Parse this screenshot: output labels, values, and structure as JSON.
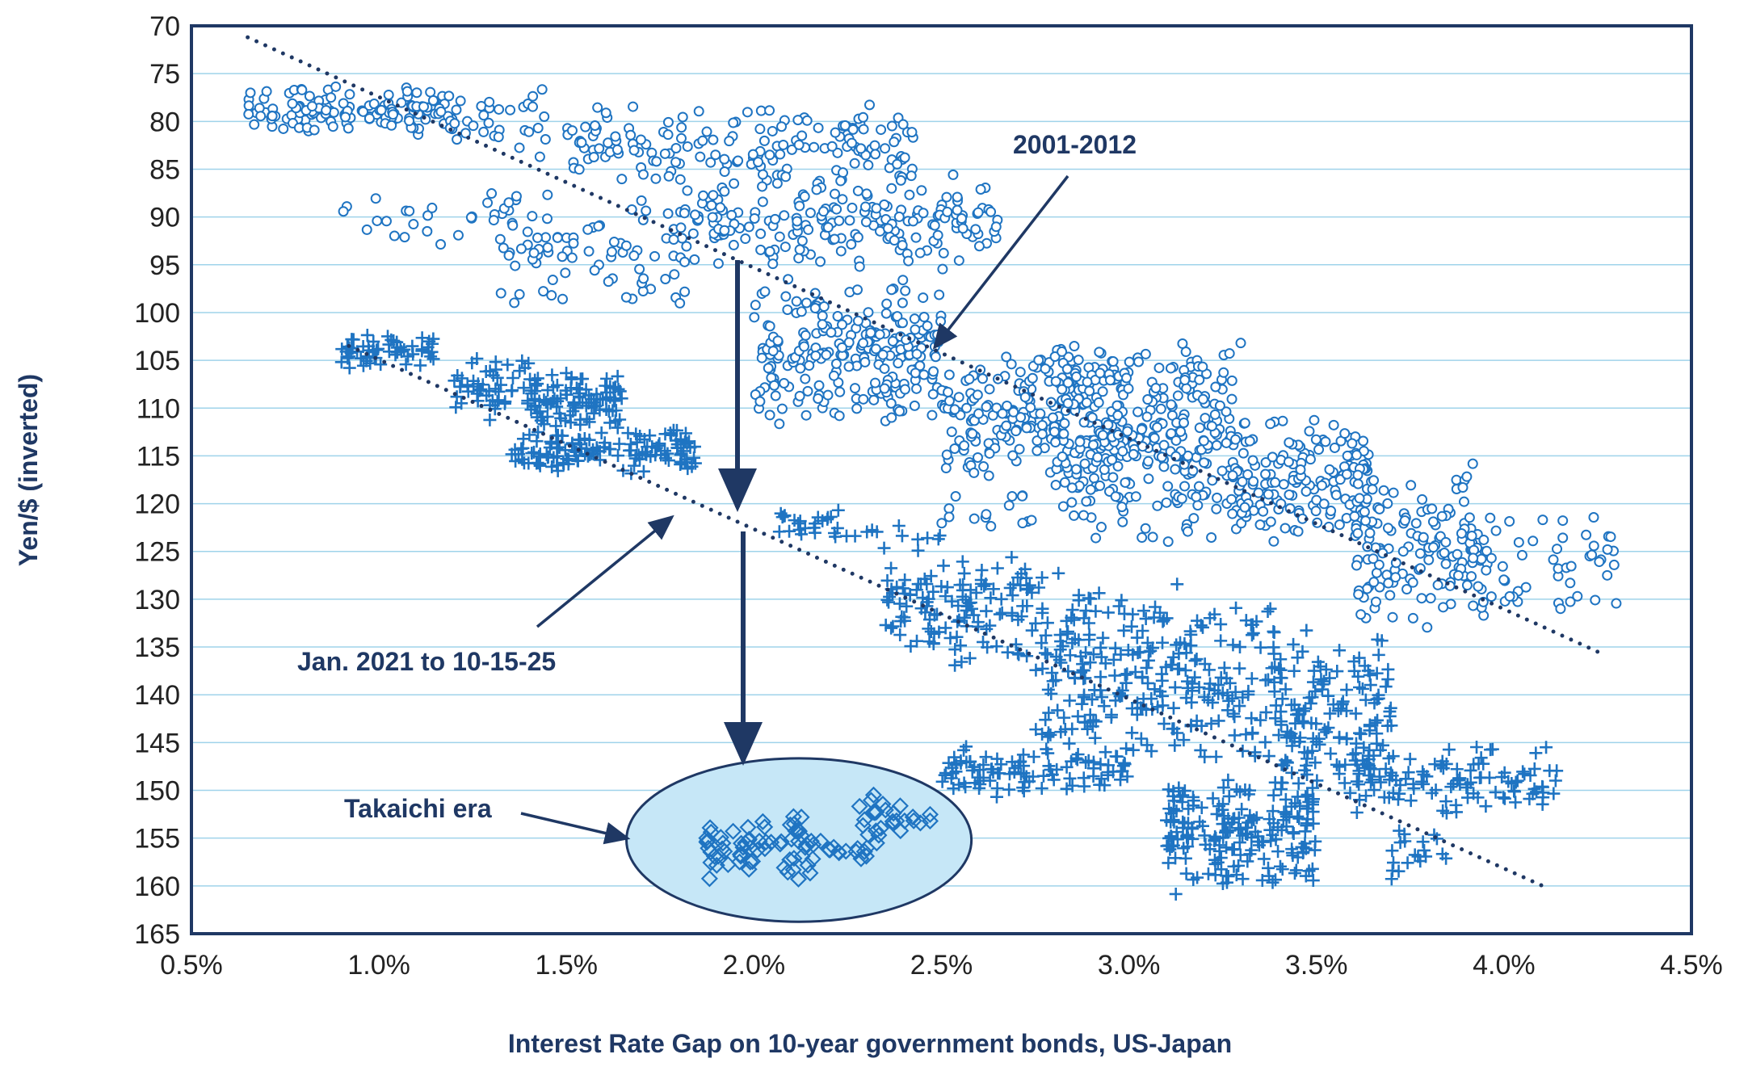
{
  "chart_data": {
    "type": "scatter",
    "xlabel": "Interest Rate Gap on 10-year government bonds, US-Japan",
    "ylabel": "Yen/$ (inverted)",
    "xlim": [
      0.5,
      4.5
    ],
    "ylim": [
      70,
      165
    ],
    "y_inverted": true,
    "grid": "horizontal",
    "x_ticks": [
      "0.5%",
      "1.0%",
      "1.5%",
      "2.0%",
      "2.5%",
      "3.0%",
      "3.5%",
      "4.0%",
      "4.5%"
    ],
    "y_ticks": [
      "70",
      "75",
      "80",
      "85",
      "90",
      "95",
      "100",
      "105",
      "110",
      "115",
      "120",
      "125",
      "130",
      "135",
      "140",
      "145",
      "150",
      "155",
      "160",
      "165"
    ],
    "colors": {
      "marker": "#1f74c2",
      "trend": "#1f3864",
      "ellipse_fill": "#c6e7f7",
      "frame": "#1f3864"
    },
    "series": [
      {
        "name": "2001-2012",
        "marker": "circle",
        "clusters": [
          {
            "x": [
              0.65,
              1.2
            ],
            "y": [
              76,
              82
            ],
            "n": 140
          },
          {
            "x": [
              1.2,
              1.45
            ],
            "y": [
              76,
              84
            ],
            "n": 30
          },
          {
            "x": [
              0.9,
              1.45
            ],
            "y": [
              87,
              93
            ],
            "n": 30
          },
          {
            "x": [
              1.3,
              1.85
            ],
            "y": [
              87,
              101
            ],
            "n": 80
          },
          {
            "x": [
              1.5,
              2.45
            ],
            "y": [
              78,
              87
            ],
            "n": 160
          },
          {
            "x": [
              1.8,
              2.65
            ],
            "y": [
              85,
              96
            ],
            "n": 200
          },
          {
            "x": [
              2.0,
              2.5
            ],
            "y": [
              96,
              112
            ],
            "n": 240
          },
          {
            "x": [
              2.5,
              3.0
            ],
            "y": [
              103,
              118
            ],
            "n": 220
          },
          {
            "x": [
              2.5,
              2.75
            ],
            "y": [
              118,
              124
            ],
            "n": 15
          },
          {
            "x": [
              2.8,
              3.3
            ],
            "y": [
              102,
              125
            ],
            "n": 320
          },
          {
            "x": [
              3.3,
              3.65
            ],
            "y": [
              110,
              125
            ],
            "n": 150
          },
          {
            "x": [
              3.6,
              3.95
            ],
            "y": [
              115,
              134
            ],
            "n": 140
          },
          {
            "x": [
              3.9,
              4.3
            ],
            "y": [
              119,
              133
            ],
            "n": 60
          }
        ]
      },
      {
        "name": "Jan. 2021 to 10-15-25",
        "marker": "plus",
        "clusters": [
          {
            "x": [
              0.9,
              1.15
            ],
            "y": [
              102,
              106
            ],
            "n": 60
          },
          {
            "x": [
              1.2,
              1.4
            ],
            "y": [
              104,
              112
            ],
            "n": 50
          },
          {
            "x": [
              1.4,
              1.65
            ],
            "y": [
              106,
              112
            ],
            "n": 100
          },
          {
            "x": [
              1.35,
              1.85
            ],
            "y": [
              112,
              117
            ],
            "n": 140
          },
          {
            "x": [
              2.05,
              2.25
            ],
            "y": [
              120,
              124
            ],
            "n": 25
          },
          {
            "x": [
              2.25,
              2.5
            ],
            "y": [
              122,
              126
            ],
            "n": 12
          },
          {
            "x": [
              2.35,
              2.9
            ],
            "y": [
              125,
              138
            ],
            "n": 150
          },
          {
            "x": [
              2.5,
              3.0
            ],
            "y": [
              145,
              151
            ],
            "n": 100
          },
          {
            "x": [
              2.75,
              3.4
            ],
            "y": [
              128,
              148
            ],
            "n": 260
          },
          {
            "x": [
              3.1,
              3.5
            ],
            "y": [
              148,
              161
            ],
            "n": 200
          },
          {
            "x": [
              3.4,
              3.7
            ],
            "y": [
              132,
              152
            ],
            "n": 150
          },
          {
            "x": [
              3.6,
              4.15
            ],
            "y": [
              145,
              153
            ],
            "n": 110
          },
          {
            "x": [
              3.7,
              3.85
            ],
            "y": [
              153,
              160
            ],
            "n": 20
          }
        ]
      },
      {
        "name": "Takaichi era",
        "marker": "diamond",
        "clusters": [
          {
            "x": [
              1.85,
              2.15
            ],
            "y": [
              152,
              160
            ],
            "n": 60
          },
          {
            "x": [
              2.1,
              2.35
            ],
            "y": [
              154,
              158
            ],
            "n": 20
          },
          {
            "x": [
              2.28,
              2.48
            ],
            "y": [
              150,
              155
            ],
            "n": 25
          }
        ]
      }
    ],
    "trendlines": [
      {
        "series": "2001-2012",
        "x": [
          0.65,
          4.25
        ],
        "y": [
          71.2,
          135.5
        ]
      },
      {
        "series": "Jan. 2021 to 10-15-25",
        "x": [
          0.92,
          4.12
        ],
        "y": [
          103.5,
          160.3
        ]
      }
    ],
    "annotations": [
      {
        "text": "2001-2012"
      },
      {
        "text": "Jan. 2021 to 10-15-25"
      },
      {
        "text": "Takaichi era"
      }
    ]
  }
}
